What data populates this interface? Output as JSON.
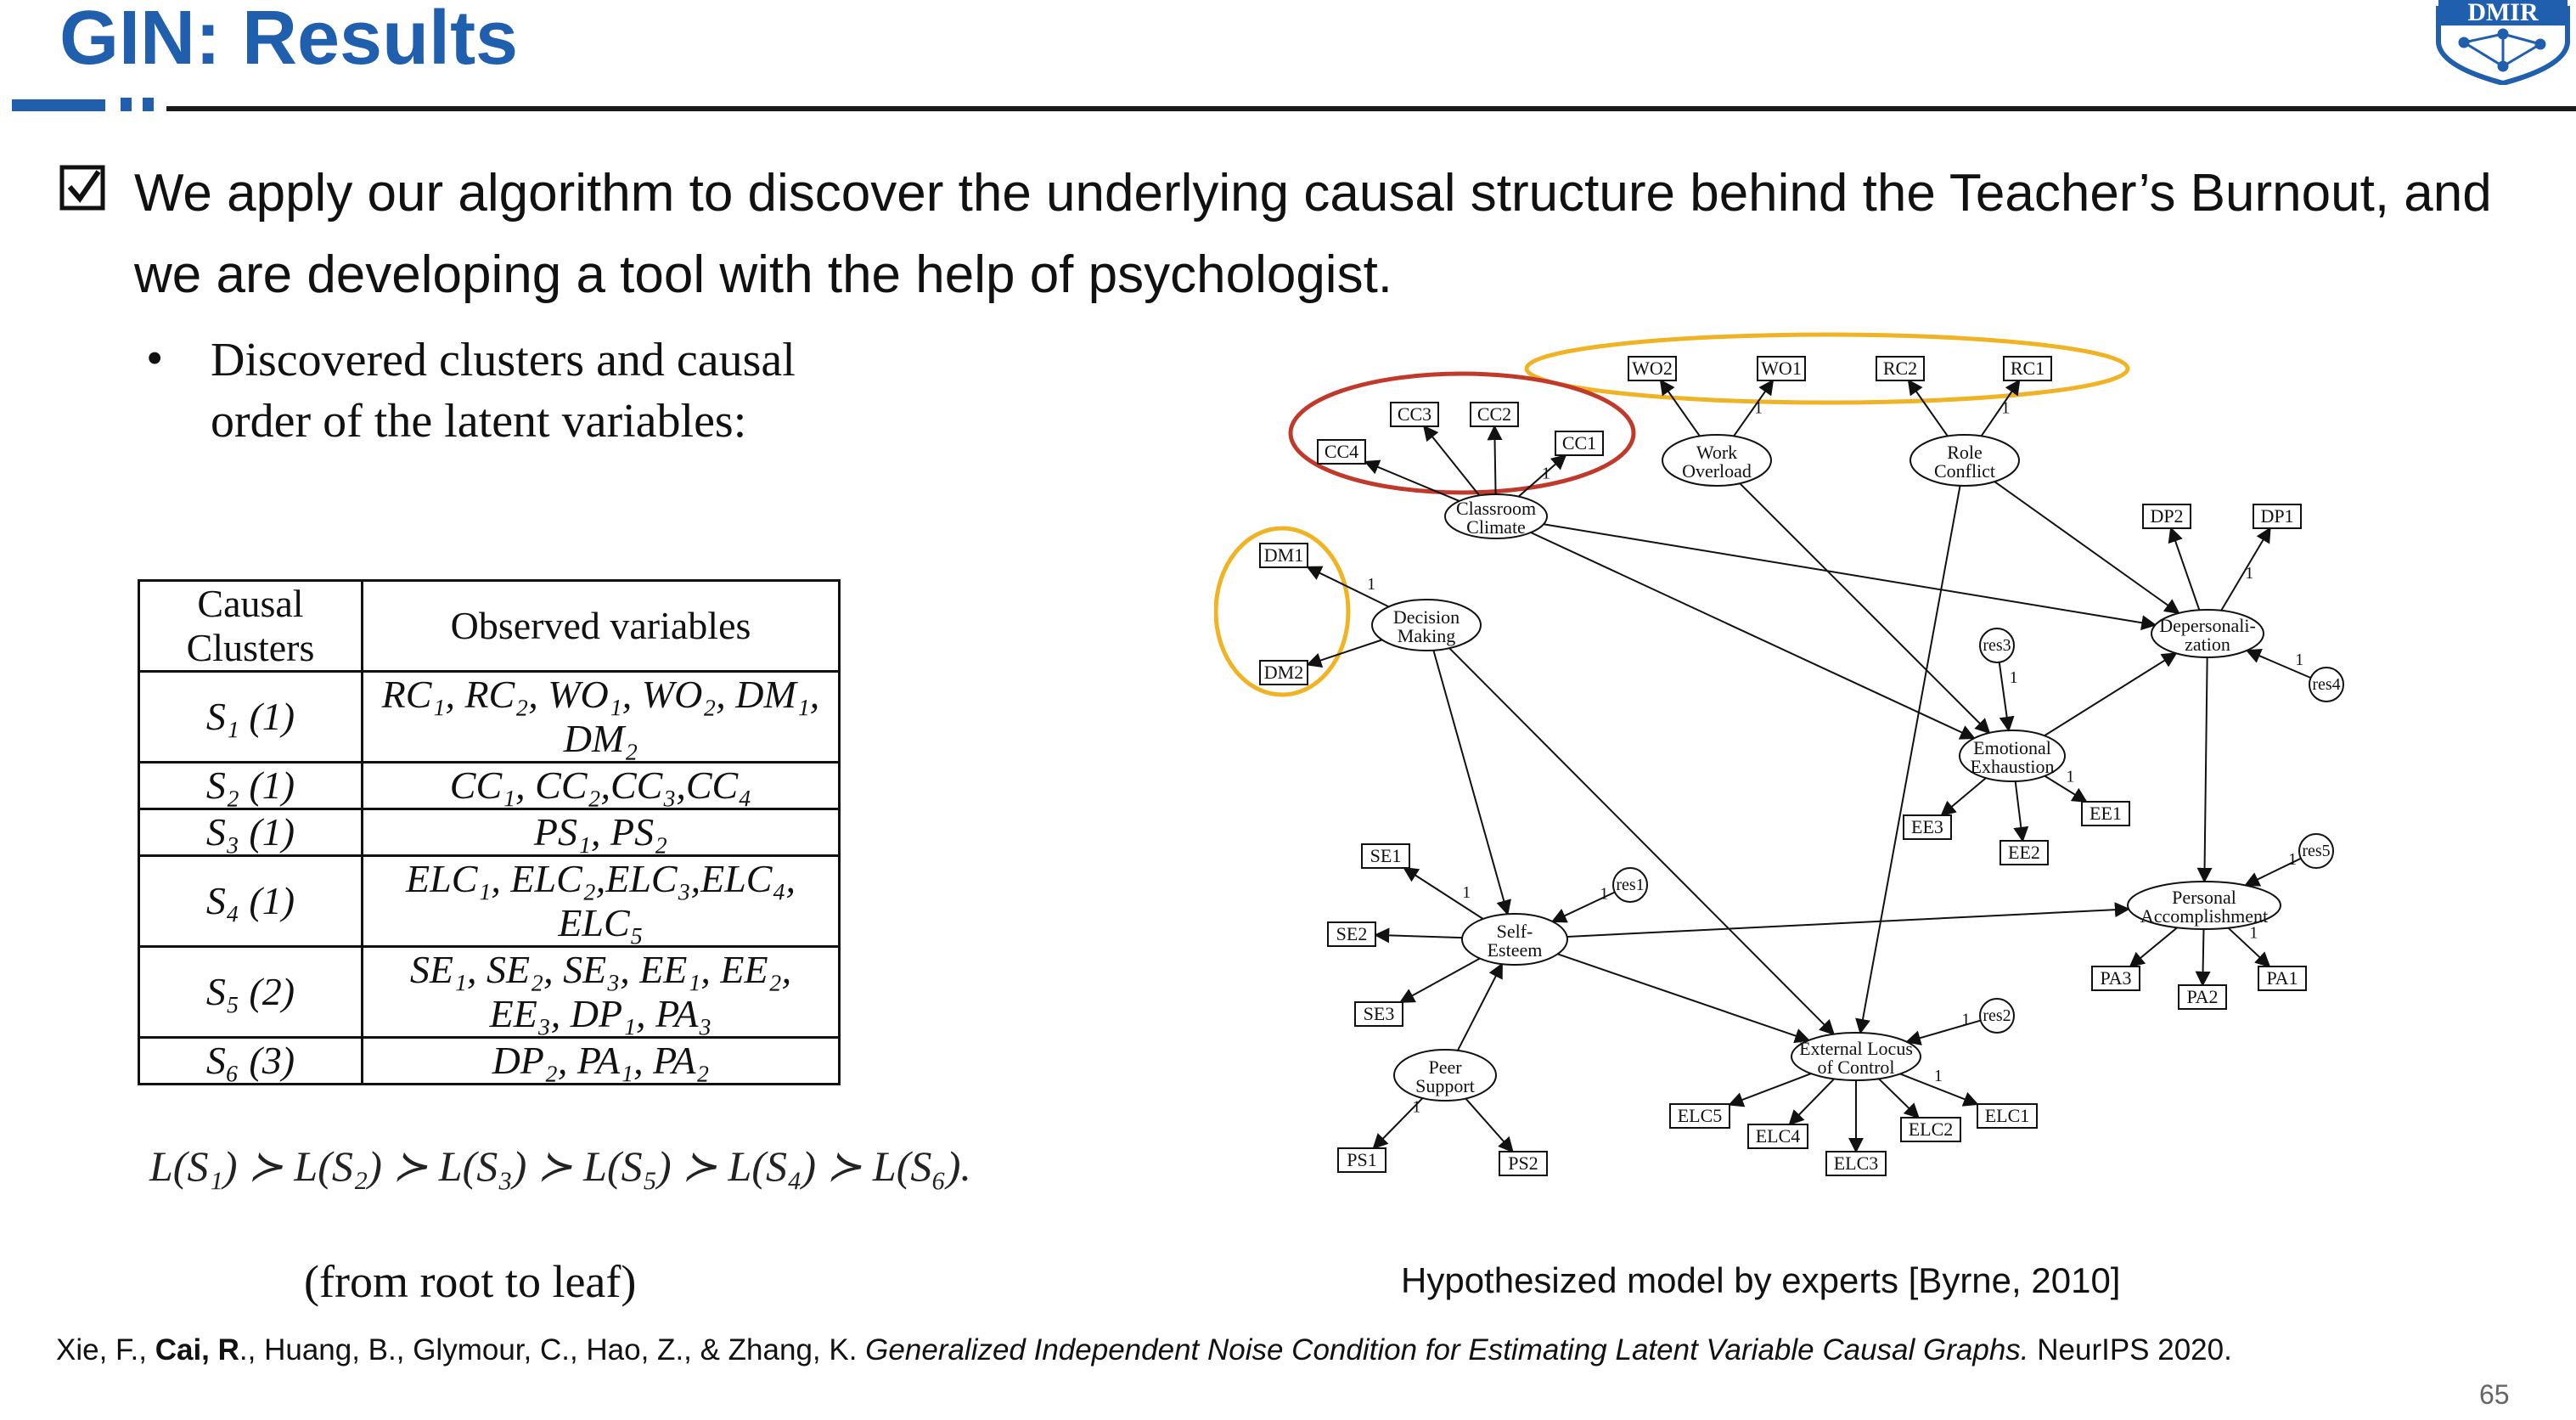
{
  "slide": {
    "title": "GIN: Results",
    "logo_text": "DMIR",
    "page_number": "65"
  },
  "main_bullet": "We apply our algorithm to discover the underlying causal structure behind the Teacher’s Burnout, and we are developing a tool with the help of psychologist.",
  "sub_bullet": "Discovered clusters and causal order of the latent variables:",
  "table": {
    "headers": [
      "Causal Clusters",
      "Observed variables"
    ],
    "rows": [
      {
        "cluster": "S₁ (1)",
        "vars": "RC₁, RC₂, WO₁, WO₂, DM₁, DM₂"
      },
      {
        "cluster": "S₂ (1)",
        "vars": "CC₁, CC₂,CC₃,CC₄"
      },
      {
        "cluster": "S₃ (1)",
        "vars": "PS₁, PS₂"
      },
      {
        "cluster": "S₄ (1)",
        "vars": "ELC₁, ELC₂,ELC₃,ELC₄, ELC₅"
      },
      {
        "cluster": "S₅ (2)",
        "vars": "SE₁, SE₂, SE₃, EE₁, EE₂, EE₃, DP₁, PA₃"
      },
      {
        "cluster": "S₆ (3)",
        "vars": "DP₂, PA₁, PA₂"
      }
    ]
  },
  "causal_order": "L(S₁) ≻ L(S₂) ≻ L(S₃) ≻ L(S₅) ≻ L(S₄) ≻ L(S₆).",
  "order_note": "(from root to leaf)",
  "diagram": {
    "caption": "Hypothesized model by experts [Byrne, 2010]",
    "edge_label": "1",
    "latents": [
      {
        "id": "cc",
        "line1": "Classroom",
        "line2": "Climate"
      },
      {
        "id": "wo",
        "line1": "Work",
        "line2": "Overload"
      },
      {
        "id": "rc",
        "line1": "Role",
        "line2": "Conflict"
      },
      {
        "id": "dm",
        "line1": "Decision",
        "line2": "Making"
      },
      {
        "id": "dp",
        "line1": "Depersonali-",
        "line2": "zation"
      },
      {
        "id": "ee",
        "line1": "Emotional",
        "line2": "Exhaustion"
      },
      {
        "id": "pa",
        "line1": "Personal",
        "line2": "Accomplishment"
      },
      {
        "id": "se",
        "line1": "Self-",
        "line2": "Esteem"
      },
      {
        "id": "elc",
        "line1": "External Locus",
        "line2": "of Control"
      },
      {
        "id": "ps",
        "line1": "Peer",
        "line2": "Support"
      }
    ],
    "residuals": [
      "res3",
      "res4",
      "res1",
      "res5",
      "res2"
    ],
    "observed": [
      "WO2",
      "WO1",
      "RC2",
      "RC1",
      "CC3",
      "CC2",
      "CC4",
      "CC1",
      "DM1",
      "DM2",
      "DP2",
      "DP1",
      "EE3",
      "EE2",
      "EE1",
      "SE1",
      "SE2",
      "SE3",
      "PA3",
      "PA2",
      "PA1",
      "PS1",
      "PS2",
      "ELC5",
      "ELC4",
      "ELC3",
      "ELC2",
      "ELC1"
    ],
    "highlight_colors": {
      "red_cluster": "#c0392b",
      "yellow_cluster": "#f0b323"
    }
  },
  "citation": {
    "authors_pre": "Xie, F., ",
    "author_bold": "Cai, R",
    "authors_post": "., Huang, B., Glymour, C., Hao, Z., & Zhang, K. ",
    "paper_title": "Generalized Independent Noise Condition for Estimating Latent Variable Causal Graphs.",
    "venue": " NeurIPS 2020."
  },
  "colors": {
    "title_blue": "#1f5fae"
  }
}
